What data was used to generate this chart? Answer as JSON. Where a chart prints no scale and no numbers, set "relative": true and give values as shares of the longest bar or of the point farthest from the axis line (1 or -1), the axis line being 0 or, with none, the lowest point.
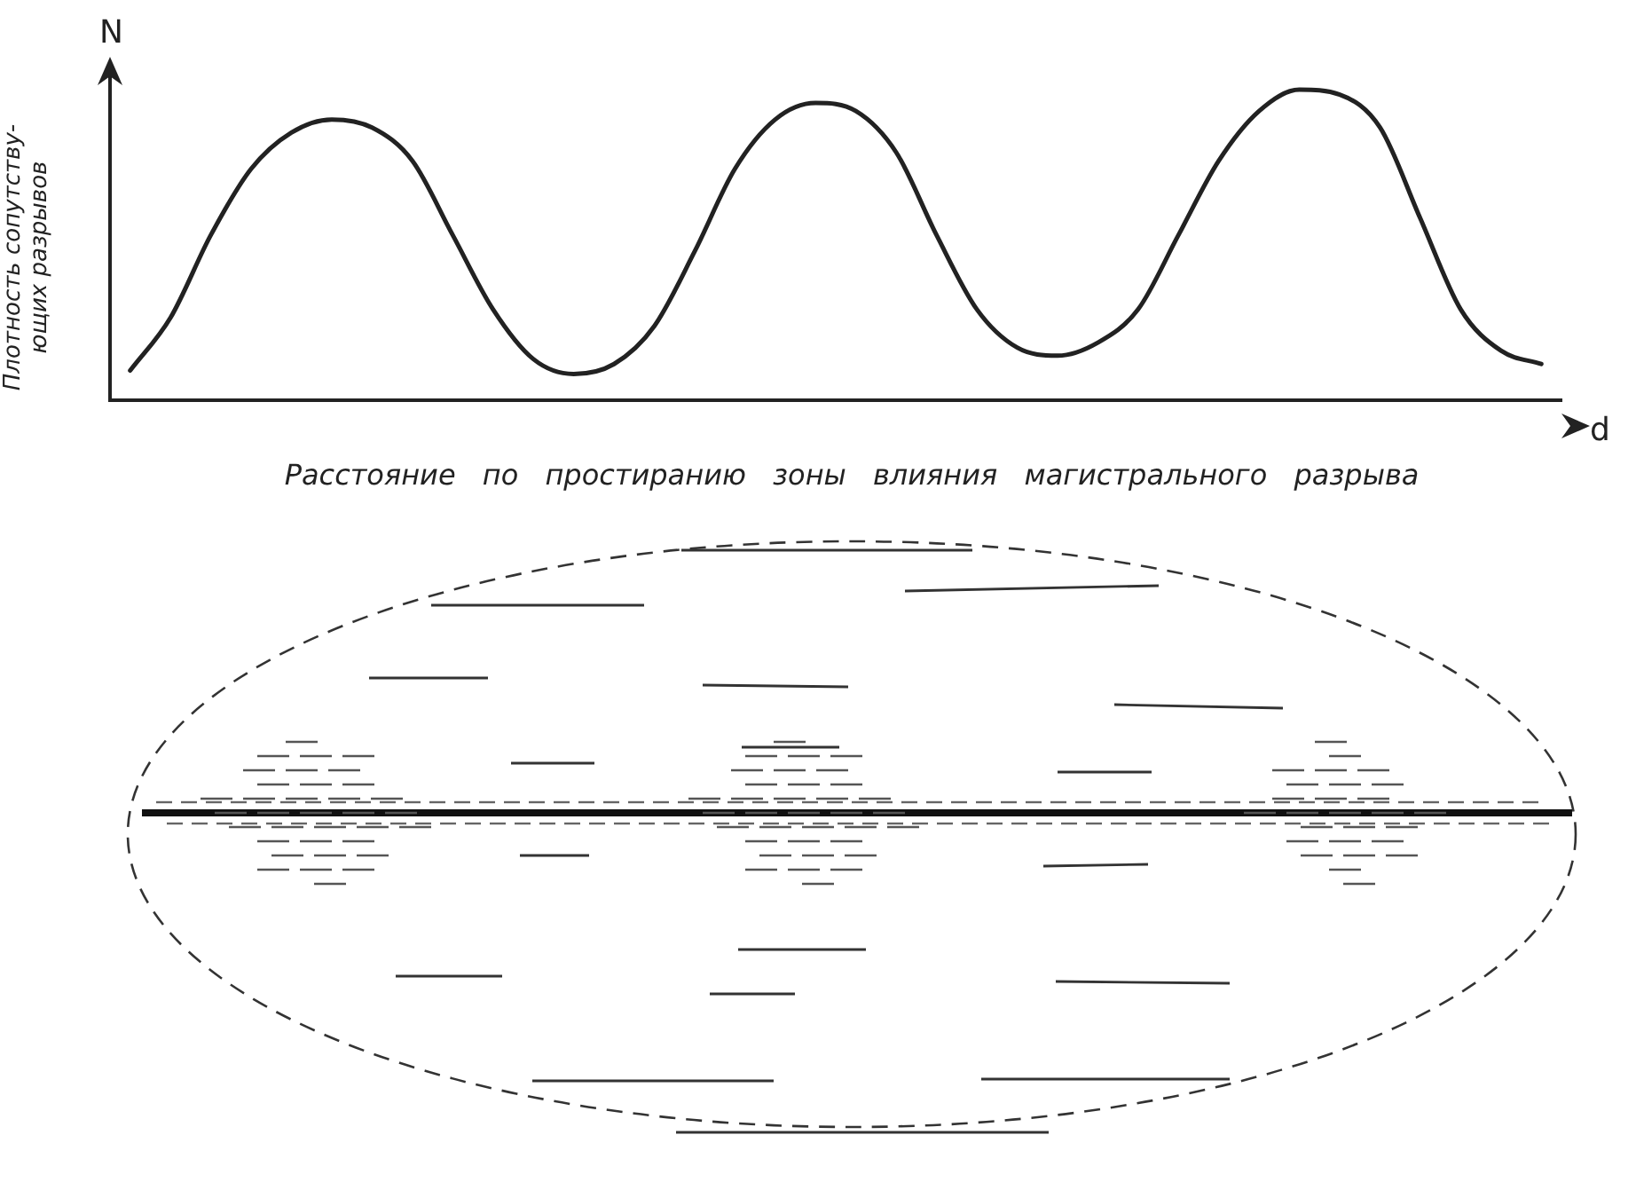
{
  "chart_data": {
    "type": "line",
    "relative": true,
    "xlabel": "Расстояние по простиранию зоны влияния магистрального разрыва",
    "ylabel": "Плотность сопутству-ющих разрывов",
    "annotations": [
      "N",
      "d"
    ],
    "categories": [
      null,
      null,
      null,
      null,
      null,
      null,
      null,
      null,
      null,
      null,
      null,
      null,
      null,
      null,
      null,
      null,
      null,
      null,
      null,
      null,
      null,
      null,
      null,
      null,
      null,
      null,
      null,
      null,
      null,
      null,
      null,
      null,
      null,
      null,
      null,
      null
    ],
    "series": [
      {
        "color": "#222222",
        "values": [
          0.096,
          0.266,
          0.532,
          0.745,
          0.862,
          0.904,
          0.878,
          0.771,
          0.532,
          0.293,
          0.133,
          0.085,
          0.117,
          0.239,
          0.479,
          0.745,
          0.904,
          0.957,
          0.931,
          0.798,
          0.532,
          0.293,
          0.17,
          0.144,
          0.186,
          0.293,
          0.532,
          0.771,
          0.931,
          1,
          0.984,
          0.878,
          0.585,
          0.293,
          0.16,
          0.117
        ]
      }
    ],
    "marker": "none",
    "line_style": "solid",
    "legend": false,
    "grid": false
  }
}
